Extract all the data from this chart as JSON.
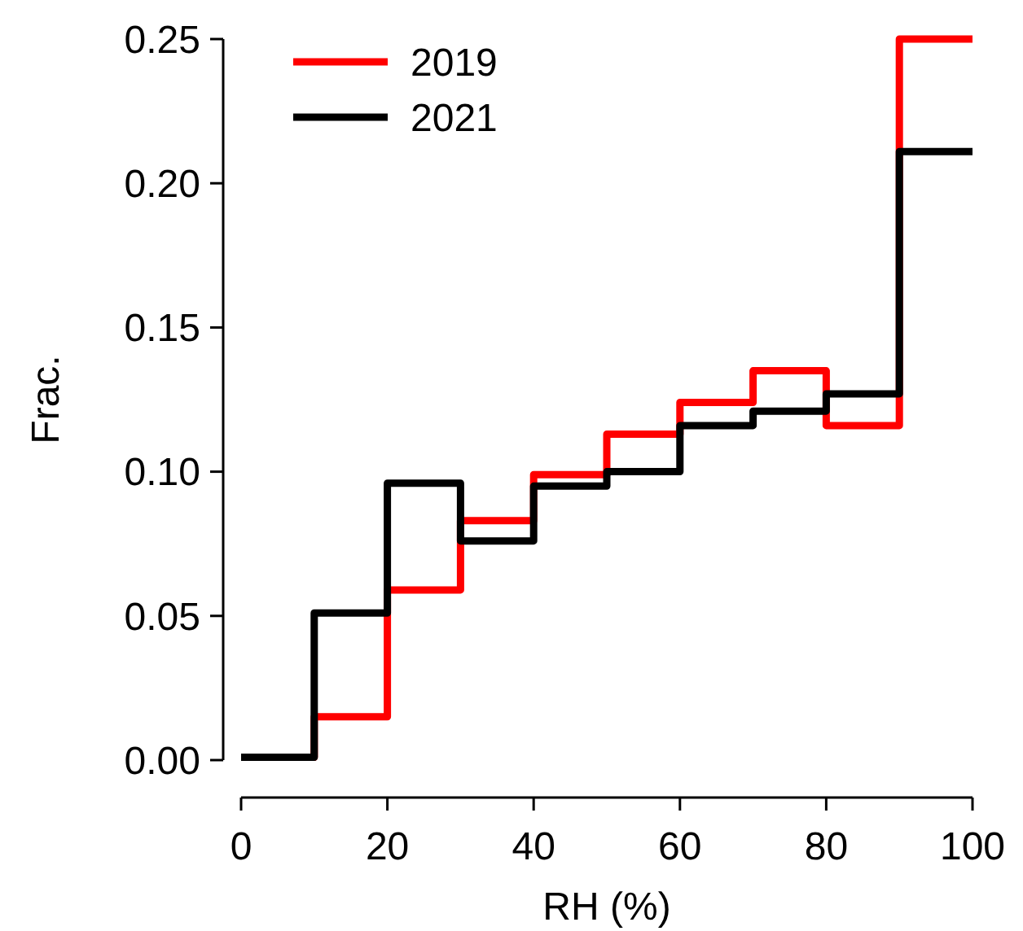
{
  "chart_data": {
    "type": "histogram",
    "xlabel": "RH (%)",
    "ylabel": "Frac.",
    "bins": [
      0,
      10,
      20,
      30,
      40,
      50,
      60,
      70,
      80,
      90,
      100
    ],
    "series": [
      {
        "name": "2019",
        "color": "#ff0000",
        "values": [
          0.001,
          0.015,
          0.059,
          0.083,
          0.099,
          0.113,
          0.124,
          0.135,
          0.116,
          0.25
        ]
      },
      {
        "name": "2021",
        "color": "#000000",
        "values": [
          0.001,
          0.051,
          0.096,
          0.076,
          0.095,
          0.1,
          0.116,
          0.121,
          0.127,
          0.211
        ]
      }
    ],
    "xlim": [
      0,
      100
    ],
    "ylim": [
      0,
      0.25
    ],
    "xticks": [
      0,
      20,
      40,
      60,
      80,
      100
    ],
    "yticks": [
      {
        "value": 0,
        "label": "0.00"
      },
      {
        "value": 0.05,
        "label": "0.05"
      },
      {
        "value": 0.1,
        "label": "0.10"
      },
      {
        "value": 0.15,
        "label": "0.15"
      },
      {
        "value": 0.2,
        "label": "0.20"
      },
      {
        "value": 0.25,
        "label": "0.25"
      }
    ],
    "legend": "top left"
  }
}
